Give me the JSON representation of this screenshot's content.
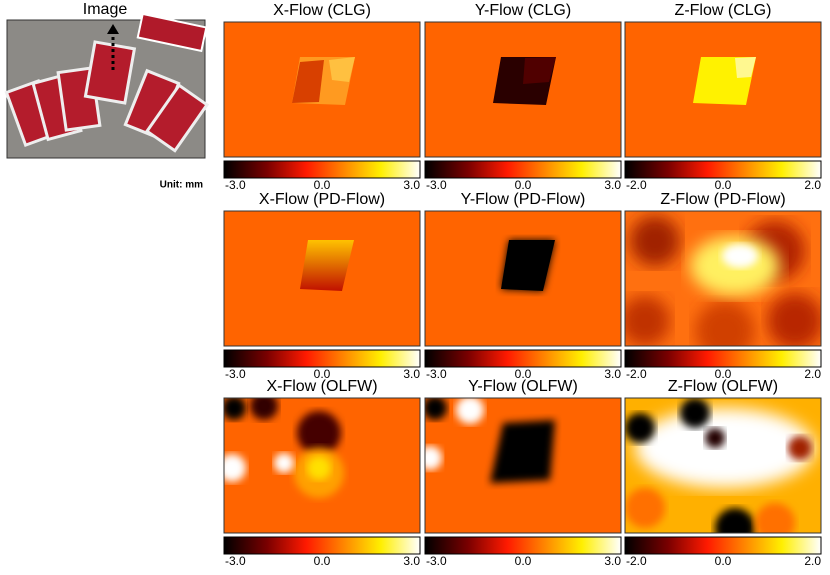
{
  "image_label": "Image",
  "unit_label": "Unit: mm",
  "panels": [
    {
      "title": "X-Flow (CLG)",
      "colorbar": [
        "-3.0",
        "0.0",
        "3.0"
      ]
    },
    {
      "title": "Y-Flow (CLG)",
      "colorbar": [
        "-3.0",
        "0.0",
        "3.0"
      ]
    },
    {
      "title": "Z-Flow (CLG)",
      "colorbar": [
        "-2.0",
        "0.0",
        "2.0"
      ]
    },
    {
      "title": "X-Flow (PD-Flow)",
      "colorbar": [
        "-3.0",
        "0.0",
        "3.0"
      ]
    },
    {
      "title": "Y-Flow (PD-Flow)",
      "colorbar": [
        "-3.0",
        "0.0",
        "3.0"
      ]
    },
    {
      "title": "Z-Flow (PD-Flow)",
      "colorbar": [
        "-2.0",
        "0.0",
        "2.0"
      ]
    },
    {
      "title": "X-Flow (OLFW)",
      "colorbar": [
        "-3.0",
        "0.0",
        "3.0"
      ]
    },
    {
      "title": "Y-Flow (OLFW)",
      "colorbar": [
        "-3.0",
        "0.0",
        "3.0"
      ]
    },
    {
      "title": "Z-Flow (OLFW)",
      "colorbar": [
        "-2.0",
        "0.0",
        "2.0"
      ]
    }
  ]
}
